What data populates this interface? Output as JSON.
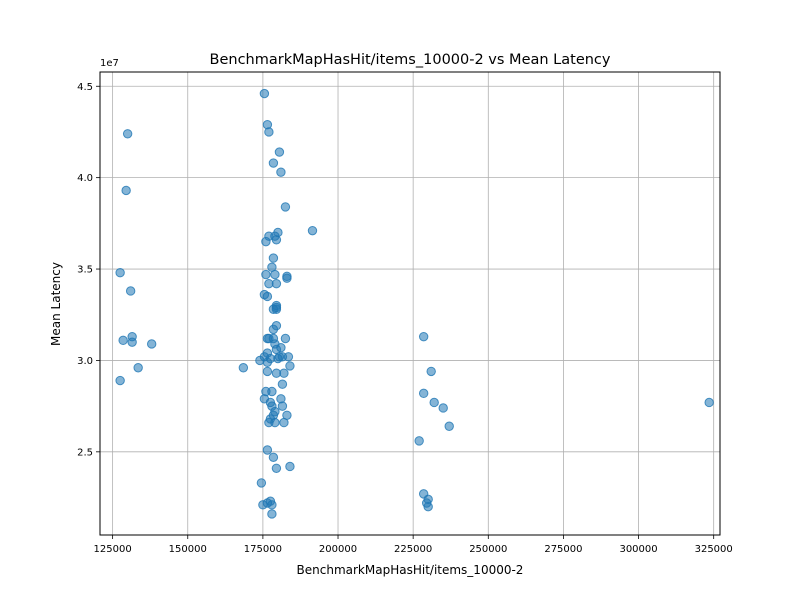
{
  "chart_data": {
    "type": "scatter",
    "title": "BenchmarkMapHasHit/items_10000-2 vs Mean Latency",
    "xlabel": "BenchmarkMapHasHit/items_10000-2",
    "ylabel": "Mean Latency",
    "y_offset_label": "1e7",
    "x_ticks": [
      125000,
      150000,
      175000,
      200000,
      225000,
      250000,
      275000,
      300000,
      325000
    ],
    "x_tick_labels": [
      "125000",
      "150000",
      "175000",
      "200000",
      "225000",
      "250000",
      "275000",
      "300000",
      "325000"
    ],
    "y_ticks": [
      2.5,
      3.0,
      3.5,
      4.0,
      4.5
    ],
    "y_tick_labels": [
      "2.5",
      "3.0",
      "3.5",
      "4.0",
      "4.5"
    ],
    "xlim": [
      120800,
      327100
    ],
    "ylim": [
      2.045,
      4.578
    ],
    "grid": true,
    "point_color": "#1f77b4",
    "point_alpha": 0.55,
    "points": [
      [
        175500,
        4.46
      ],
      [
        176500,
        4.29
      ],
      [
        177000,
        4.25
      ],
      [
        130000,
        4.24
      ],
      [
        180500,
        4.14
      ],
      [
        178500,
        4.08
      ],
      [
        181000,
        4.03
      ],
      [
        129500,
        3.93
      ],
      [
        182500,
        3.84
      ],
      [
        191500,
        3.71
      ],
      [
        180000,
        3.7
      ],
      [
        179000,
        3.68
      ],
      [
        177000,
        3.68
      ],
      [
        179500,
        3.66
      ],
      [
        176000,
        3.65
      ],
      [
        178500,
        3.56
      ],
      [
        178000,
        3.51
      ],
      [
        127500,
        3.48
      ],
      [
        176000,
        3.47
      ],
      [
        179000,
        3.47
      ],
      [
        183000,
        3.46
      ],
      [
        183000,
        3.45
      ],
      [
        177000,
        3.42
      ],
      [
        179500,
        3.42
      ],
      [
        131000,
        3.38
      ],
      [
        175500,
        3.36
      ],
      [
        176500,
        3.35
      ],
      [
        179500,
        3.3
      ],
      [
        179500,
        3.29
      ],
      [
        178500,
        3.28
      ],
      [
        179500,
        3.28
      ],
      [
        179500,
        3.19
      ],
      [
        178500,
        3.17
      ],
      [
        131500,
        3.13
      ],
      [
        128500,
        3.11
      ],
      [
        176500,
        3.12
      ],
      [
        177000,
        3.12
      ],
      [
        182500,
        3.12
      ],
      [
        178500,
        3.12
      ],
      [
        131500,
        3.1
      ],
      [
        138000,
        3.09
      ],
      [
        179000,
        3.09
      ],
      [
        179500,
        3.06
      ],
      [
        181000,
        3.07
      ],
      [
        176500,
        3.04
      ],
      [
        175500,
        3.02
      ],
      [
        174000,
        3.0
      ],
      [
        177500,
        3.01
      ],
      [
        180500,
        3.02
      ],
      [
        181500,
        3.02
      ],
      [
        183500,
        3.02
      ],
      [
        180000,
        3.01
      ],
      [
        176500,
        2.99
      ],
      [
        133500,
        2.96
      ],
      [
        168500,
        2.96
      ],
      [
        184000,
        2.97
      ],
      [
        176500,
        2.94
      ],
      [
        179500,
        2.93
      ],
      [
        182000,
        2.93
      ],
      [
        127500,
        2.89
      ],
      [
        181500,
        2.87
      ],
      [
        176000,
        2.83
      ],
      [
        178000,
        2.83
      ],
      [
        175500,
        2.79
      ],
      [
        181000,
        2.79
      ],
      [
        177500,
        2.77
      ],
      [
        178000,
        2.75
      ],
      [
        181500,
        2.75
      ],
      [
        179000,
        2.72
      ],
      [
        178500,
        2.7
      ],
      [
        183000,
        2.7
      ],
      [
        177500,
        2.68
      ],
      [
        177000,
        2.66
      ],
      [
        179000,
        2.66
      ],
      [
        182000,
        2.66
      ],
      [
        176500,
        2.51
      ],
      [
        178500,
        2.47
      ],
      [
        179500,
        2.41
      ],
      [
        184000,
        2.42
      ],
      [
        174500,
        2.33
      ],
      [
        177500,
        2.23
      ],
      [
        176500,
        2.22
      ],
      [
        175000,
        2.21
      ],
      [
        178000,
        2.21
      ],
      [
        178000,
        2.16
      ],
      [
        228500,
        3.13
      ],
      [
        231000,
        2.94
      ],
      [
        228500,
        2.82
      ],
      [
        232000,
        2.77
      ],
      [
        235000,
        2.74
      ],
      [
        237000,
        2.64
      ],
      [
        227000,
        2.56
      ],
      [
        228500,
        2.27
      ],
      [
        230000,
        2.24
      ],
      [
        229500,
        2.22
      ],
      [
        230000,
        2.2
      ],
      [
        323500,
        2.77
      ]
    ]
  }
}
